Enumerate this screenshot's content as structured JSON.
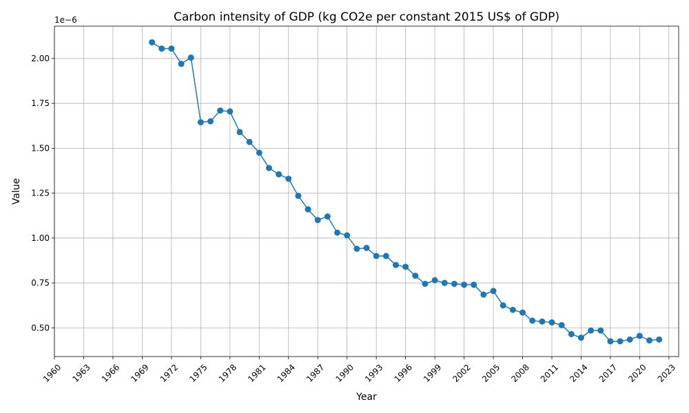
{
  "chart_data": {
    "type": "line",
    "title": "Carbon intensity of GDP (kg CO2e per constant 2015 US$ of GDP)",
    "xlabel": "Year",
    "ylabel": "Value",
    "offset_label": "1e−6",
    "xlim": [
      1960,
      2024
    ],
    "ylim": [
      0.34,
      2.18
    ],
    "x_ticks": [
      1960,
      1963,
      1966,
      1969,
      1972,
      1975,
      1978,
      1981,
      1984,
      1987,
      1990,
      1993,
      1996,
      1999,
      2002,
      2005,
      2008,
      2011,
      2014,
      2017,
      2020,
      2023
    ],
    "y_ticks": [
      0.5,
      0.75,
      1.0,
      1.25,
      1.5,
      1.75,
      2.0
    ],
    "y_tick_labels": [
      "0.50",
      "0.75",
      "1.00",
      "1.25",
      "1.50",
      "1.75",
      "2.00"
    ],
    "grid": true,
    "color": "#1f77b4",
    "series": [
      {
        "x": [
          1970,
          1971,
          1972,
          1973,
          1974,
          1975,
          1976,
          1977,
          1978,
          1979,
          1980,
          1981,
          1982,
          1983,
          1984,
          1985,
          1986,
          1987,
          1988,
          1989,
          1990,
          1991,
          1992,
          1993,
          1994,
          1995,
          1996,
          1997,
          1998,
          1999,
          2000,
          2001,
          2002,
          2003,
          2004,
          2005,
          2006,
          2007,
          2008,
          2009,
          2010,
          2011,
          2012,
          2013,
          2014,
          2015,
          2016,
          2017,
          2018,
          2019,
          2020,
          2021,
          2022
        ],
        "values": [
          2.09,
          2.055,
          2.055,
          1.97,
          2.005,
          1.645,
          1.65,
          1.71,
          1.705,
          1.59,
          1.535,
          1.475,
          1.39,
          1.355,
          1.33,
          1.235,
          1.16,
          1.1,
          1.12,
          1.03,
          1.015,
          0.94,
          0.945,
          0.9,
          0.9,
          0.85,
          0.84,
          0.79,
          0.745,
          0.765,
          0.75,
          0.745,
          0.74,
          0.74,
          0.685,
          0.705,
          0.625,
          0.6,
          0.585,
          0.54,
          0.535,
          0.53,
          0.515,
          0.465,
          0.445,
          0.485,
          0.485,
          0.425,
          0.425,
          0.435,
          0.455,
          0.43,
          0.435
        ]
      }
    ]
  }
}
